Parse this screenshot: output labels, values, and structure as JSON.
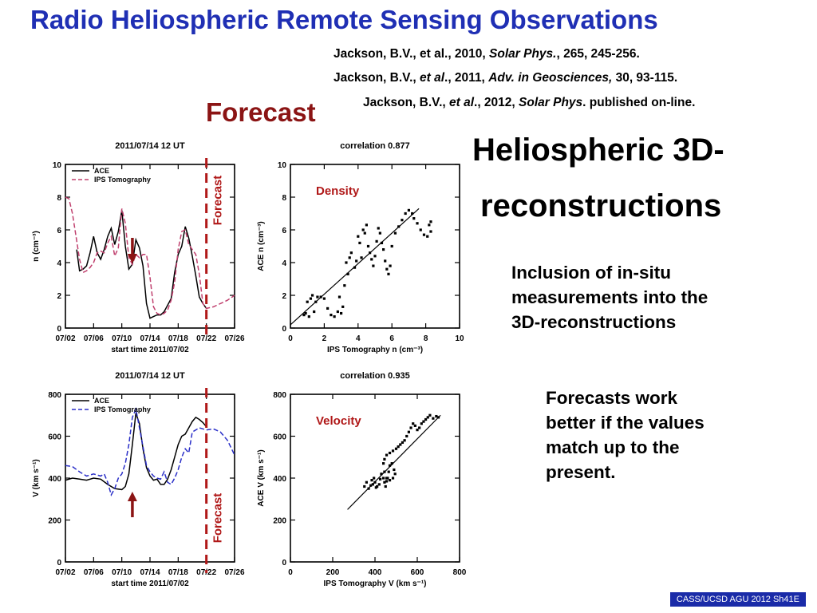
{
  "slide": {
    "title": "Radio Heliospheric Remote Sensing Observations",
    "forecast_heading": "Forecast",
    "references": [
      {
        "authors": "Jackson, B.V., et al.",
        "year": ", 2010, ",
        "journal": "Solar Phys.",
        "rest": ", 265, 245-256."
      },
      {
        "authors": "Jackson, B.V., ",
        "etal": "et al",
        "year": "., 2011, ",
        "journal": "Adv. in Geosciences,",
        "rest": " 30, 93-115."
      },
      {
        "authors": "Jackson, B.V., ",
        "etal": "et al",
        "year": "., 2012, ",
        "journal": "Solar Phys",
        "rest": ". published on-line."
      }
    ],
    "heading_line1": "Heliospheric 3D-",
    "heading_line2": "reconstructions",
    "text1": [
      "Inclusion of in-situ",
      "measurements into the",
      "3D-reconstructions"
    ],
    "text2": [
      "Forecasts work",
      "better if the values",
      "match up to the",
      "present."
    ],
    "footer": "CASS/UCSD AGU 2012 Sh41E"
  },
  "colors": {
    "title": "#1f2fb4",
    "forecast": "#8b1414",
    "ips_density": "#c0406e",
    "ips_velocity": "#2a2fc8",
    "arrow": "#8b1414",
    "footer_bg": "#1a2ba8"
  },
  "chart_data": [
    {
      "type": "line",
      "title": "2011/07/14 12 UT",
      "xlabel": "start time 2011/07/02",
      "ylabel": "n (cm⁻³)",
      "ylim": [
        0,
        10
      ],
      "xlim": [
        0,
        24
      ],
      "x_tick_labels": [
        "07/02",
        "07/06",
        "07/10",
        "07/14",
        "07/18",
        "07/22",
        "07/26"
      ],
      "x_ticks": [
        0,
        4,
        8,
        12,
        16,
        20,
        24
      ],
      "y_ticks": [
        0,
        2,
        4,
        6,
        8,
        10
      ],
      "forecast_x": 20,
      "forecast_label": "Forecast",
      "arrow": "down",
      "legend": "top-left",
      "series": [
        {
          "name": "ACE",
          "style": "solid",
          "x": [
            1.6,
            2.0,
            2.5,
            3.0,
            3.5,
            4.0,
            4.5,
            5.0,
            5.5,
            6.0,
            6.5,
            7.0,
            7.5,
            8.0,
            8.5,
            9.0,
            9.5,
            10.0,
            10.5,
            11.0,
            11.5,
            12.0,
            12.5,
            13.0,
            13.5,
            14.0,
            14.5,
            15.0,
            15.5,
            16.0,
            16.5,
            17.0,
            17.5,
            18.0,
            18.5,
            19.0,
            19.5,
            20.0
          ],
          "y": [
            4.8,
            3.5,
            3.6,
            3.8,
            4.6,
            5.6,
            4.6,
            4.2,
            4.8,
            5.6,
            6.1,
            5.1,
            5.9,
            7.2,
            5.0,
            3.6,
            3.9,
            5.4,
            4.9,
            3.8,
            1.5,
            0.6,
            0.7,
            0.8,
            0.8,
            1.0,
            1.4,
            1.8,
            3.4,
            4.5,
            5.0,
            6.2,
            5.5,
            4.4,
            3.2,
            1.9,
            1.5,
            1.2
          ]
        },
        {
          "name": "IPS Tomography",
          "style": "dashed",
          "x": [
            0.0,
            0.5,
            1.0,
            1.5,
            2.0,
            2.5,
            3.0,
            3.5,
            4.0,
            4.5,
            5.0,
            5.5,
            6.0,
            6.5,
            7.0,
            7.5,
            8.0,
            8.5,
            9.0,
            9.5,
            10.0,
            10.5,
            11.0,
            11.5,
            12.0,
            12.5,
            13.0,
            13.5,
            14.0,
            14.5,
            15.0,
            15.5,
            16.0,
            16.5,
            17.0,
            17.5,
            18.0,
            18.5,
            19.0,
            19.5,
            20.0,
            21.0,
            22.0,
            23.0,
            24.0
          ],
          "y": [
            8.0,
            7.9,
            7.0,
            5.6,
            4.2,
            3.4,
            3.5,
            3.7,
            4.0,
            4.6,
            4.7,
            4.6,
            5.2,
            5.6,
            4.4,
            4.9,
            7.3,
            6.4,
            4.3,
            3.9,
            4.5,
            4.3,
            4.5,
            4.5,
            3.1,
            1.3,
            0.9,
            0.8,
            0.9,
            1.1,
            1.7,
            2.8,
            4.8,
            5.9,
            6.0,
            5.1,
            4.8,
            4.5,
            3.3,
            1.5,
            1.2,
            1.3,
            1.5,
            1.7,
            2.0
          ]
        }
      ]
    },
    {
      "type": "scatter",
      "title": "correlation 0.877",
      "panel_label": "Density",
      "xlabel": "IPS Tomography n (cm⁻³)",
      "ylabel": "ACE n (cm⁻³)",
      "xlim": [
        0,
        10
      ],
      "ylim": [
        0,
        10
      ],
      "x_ticks": [
        0,
        2,
        4,
        6,
        8,
        10
      ],
      "y_ticks": [
        0,
        2,
        4,
        6,
        8,
        10
      ],
      "fit_line": [
        [
          0,
          0.2
        ],
        [
          7.6,
          7.3
        ]
      ],
      "points": [
        [
          0.8,
          0.8
        ],
        [
          0.9,
          0.9
        ],
        [
          1.0,
          1.6
        ],
        [
          1.1,
          0.7
        ],
        [
          1.2,
          1.8
        ],
        [
          1.3,
          2.0
        ],
        [
          1.4,
          1.0
        ],
        [
          1.5,
          1.6
        ],
        [
          1.6,
          1.9
        ],
        [
          1.8,
          1.9
        ],
        [
          2.0,
          1.8
        ],
        [
          2.2,
          1.2
        ],
        [
          2.4,
          0.8
        ],
        [
          2.6,
          0.7
        ],
        [
          2.8,
          1.0
        ],
        [
          3.0,
          0.9
        ],
        [
          3.1,
          1.3
        ],
        [
          2.9,
          1.9
        ],
        [
          3.2,
          2.6
        ],
        [
          3.4,
          3.3
        ],
        [
          3.3,
          4.0
        ],
        [
          3.5,
          4.3
        ],
        [
          3.6,
          4.6
        ],
        [
          3.8,
          3.7
        ],
        [
          3.9,
          4.1
        ],
        [
          4.0,
          5.6
        ],
        [
          4.1,
          5.2
        ],
        [
          4.2,
          4.3
        ],
        [
          4.3,
          6.0
        ],
        [
          4.4,
          5.8
        ],
        [
          4.5,
          6.3
        ],
        [
          4.6,
          5.0
        ],
        [
          4.7,
          4.6
        ],
        [
          4.8,
          4.2
        ],
        [
          4.9,
          3.8
        ],
        [
          5.0,
          4.4
        ],
        [
          5.1,
          5.3
        ],
        [
          5.2,
          6.1
        ],
        [
          5.3,
          5.8
        ],
        [
          5.4,
          5.2
        ],
        [
          5.5,
          4.8
        ],
        [
          5.6,
          4.1
        ],
        [
          5.7,
          3.6
        ],
        [
          5.8,
          3.3
        ],
        [
          5.9,
          3.8
        ],
        [
          6.0,
          5.0
        ],
        [
          6.2,
          5.8
        ],
        [
          6.4,
          6.2
        ],
        [
          6.6,
          6.6
        ],
        [
          6.8,
          7.0
        ],
        [
          7.0,
          7.2
        ],
        [
          7.2,
          7.0
        ],
        [
          7.3,
          6.7
        ],
        [
          7.5,
          6.4
        ],
        [
          7.7,
          6.0
        ],
        [
          7.9,
          5.7
        ],
        [
          8.1,
          5.6
        ],
        [
          8.3,
          5.9
        ],
        [
          8.2,
          6.3
        ],
        [
          8.3,
          6.5
        ]
      ]
    },
    {
      "type": "line",
      "title": "2011/07/14 12 UT",
      "xlabel": "start time 2011/07/02",
      "ylabel": "V (km s⁻¹)",
      "ylim": [
        0,
        800
      ],
      "xlim": [
        0,
        24
      ],
      "x_tick_labels": [
        "07/02",
        "07/06",
        "07/10",
        "07/14",
        "07/18",
        "07/22",
        "07/26"
      ],
      "x_ticks": [
        0,
        4,
        8,
        12,
        16,
        20,
        24
      ],
      "y_ticks": [
        0,
        200,
        400,
        600,
        800
      ],
      "forecast_x": 20,
      "forecast_label": "Forecast",
      "arrow": "up",
      "legend": "top-left",
      "series": [
        {
          "name": "ACE",
          "style": "solid",
          "x": [
            0.0,
            1.0,
            2.0,
            3.0,
            4.0,
            5.0,
            6.0,
            7.0,
            8.0,
            8.5,
            9.0,
            9.5,
            10.0,
            10.5,
            11.0,
            11.5,
            12.0,
            12.5,
            13.0,
            13.5,
            14.0,
            14.5,
            15.0,
            15.5,
            16.0,
            16.5,
            17.0,
            17.5,
            18.0,
            18.5,
            19.0,
            19.5,
            20.0
          ],
          "y": [
            390,
            400,
            395,
            390,
            400,
            395,
            370,
            350,
            345,
            360,
            420,
            560,
            710,
            660,
            540,
            450,
            410,
            390,
            395,
            370,
            370,
            395,
            440,
            500,
            560,
            600,
            610,
            640,
            670,
            690,
            680,
            665,
            645
          ]
        },
        {
          "name": "IPS Tomography",
          "style": "dashed",
          "x": [
            0.0,
            1.0,
            2.0,
            3.0,
            4.0,
            5.0,
            5.5,
            6.0,
            6.5,
            7.0,
            7.5,
            8.0,
            8.5,
            9.0,
            9.5,
            10.0,
            10.5,
            11.0,
            11.5,
            12.0,
            12.5,
            13.0,
            13.5,
            14.0,
            14.5,
            15.0,
            15.5,
            16.0,
            16.5,
            17.0,
            17.5,
            18.0,
            19.0,
            20.0,
            21.0,
            22.0,
            23.0,
            24.0
          ],
          "y": [
            460,
            455,
            430,
            410,
            420,
            410,
            420,
            380,
            320,
            350,
            400,
            420,
            470,
            560,
            690,
            730,
            640,
            550,
            460,
            430,
            410,
            400,
            395,
            430,
            380,
            370,
            400,
            440,
            500,
            540,
            520,
            620,
            640,
            630,
            635,
            620,
            580,
            510
          ]
        }
      ]
    },
    {
      "type": "scatter",
      "title": "correlation 0.935",
      "panel_label": "Velocity",
      "xlabel": "IPS Tomography V (km s⁻¹)",
      "ylabel": "ACE V (km s⁻¹)",
      "xlim": [
        0,
        800
      ],
      "ylim": [
        0,
        800
      ],
      "x_ticks": [
        0,
        200,
        400,
        600,
        800
      ],
      "y_ticks": [
        0,
        200,
        400,
        600,
        800
      ],
      "fit_line": [
        [
          270,
          250
        ],
        [
          710,
          700
        ]
      ],
      "points": [
        [
          350,
          360
        ],
        [
          360,
          380
        ],
        [
          370,
          350
        ],
        [
          380,
          365
        ],
        [
          385,
          390
        ],
        [
          390,
          370
        ],
        [
          395,
          400
        ],
        [
          400,
          380
        ],
        [
          405,
          355
        ],
        [
          410,
          360
        ],
        [
          420,
          370
        ],
        [
          425,
          395
        ],
        [
          430,
          420
        ],
        [
          440,
          400
        ],
        [
          445,
          380
        ],
        [
          450,
          360
        ],
        [
          455,
          385
        ],
        [
          460,
          400
        ],
        [
          465,
          430
        ],
        [
          470,
          460
        ],
        [
          480,
          470
        ],
        [
          490,
          440
        ],
        [
          495,
          420
        ],
        [
          485,
          400
        ],
        [
          470,
          390
        ],
        [
          455,
          400
        ],
        [
          445,
          430
        ],
        [
          440,
          470
        ],
        [
          445,
          490
        ],
        [
          455,
          510
        ],
        [
          470,
          520
        ],
        [
          485,
          530
        ],
        [
          500,
          540
        ],
        [
          510,
          550
        ],
        [
          520,
          560
        ],
        [
          530,
          570
        ],
        [
          540,
          580
        ],
        [
          550,
          600
        ],
        [
          560,
          620
        ],
        [
          570,
          640
        ],
        [
          580,
          660
        ],
        [
          590,
          650
        ],
        [
          600,
          630
        ],
        [
          610,
          640
        ],
        [
          620,
          660
        ],
        [
          630,
          670
        ],
        [
          640,
          680
        ],
        [
          650,
          690
        ],
        [
          660,
          700
        ],
        [
          675,
          685
        ],
        [
          690,
          695
        ],
        [
          700,
          690
        ]
      ]
    }
  ]
}
